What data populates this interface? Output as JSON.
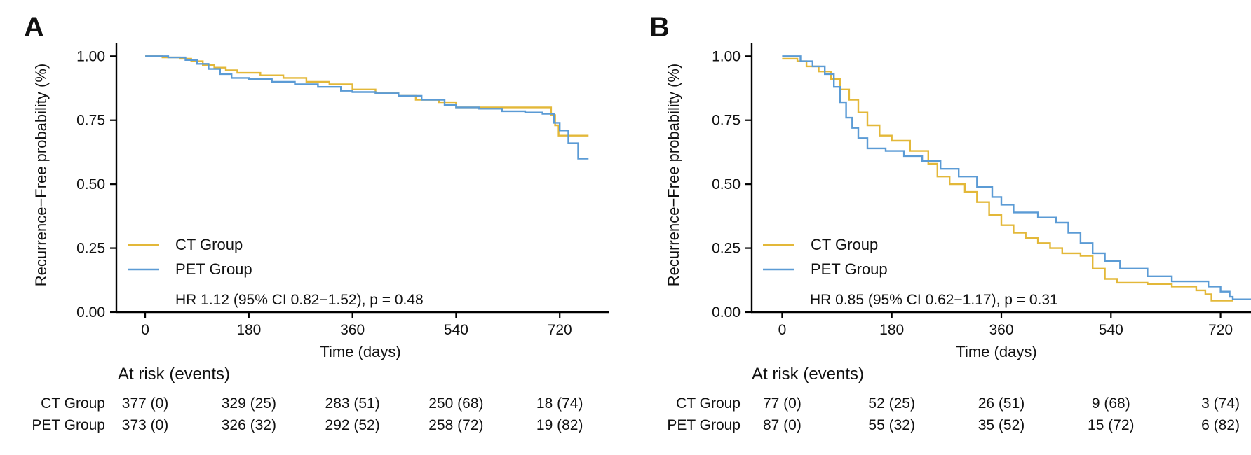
{
  "chart_data": [
    {
      "type": "line",
      "panel": "A",
      "xlabel": "Time (days)",
      "ylabel": "Recurrence−Free probability (%)",
      "xlim": [
        -50,
        805
      ],
      "ylim": [
        0,
        1.05
      ],
      "xticks": [
        0,
        180,
        360,
        540,
        720
      ],
      "yticks": [
        0,
        0.25,
        0.5,
        0.75,
        1.0
      ],
      "ytick_labels": [
        "0.00",
        "0.25",
        "0.50",
        "0.75",
        "1.00"
      ],
      "legend": {
        "placement": "bottom-left",
        "entries": [
          "CT Group",
          "PET Group"
        ]
      },
      "annotation": "HR 1.12 (95% CI 0.82−1.52), p = 0.48",
      "series": [
        {
          "name": "CT Group",
          "color": "#E3B839",
          "step_points": [
            [
              0,
              1.0
            ],
            [
              30,
              0.995
            ],
            [
              60,
              0.99
            ],
            [
              80,
              0.98
            ],
            [
              100,
              0.965
            ],
            [
              120,
              0.955
            ],
            [
              140,
              0.945
            ],
            [
              160,
              0.935
            ],
            [
              200,
              0.925
            ],
            [
              240,
              0.915
            ],
            [
              280,
              0.9
            ],
            [
              320,
              0.89
            ],
            [
              360,
              0.87
            ],
            [
              400,
              0.855
            ],
            [
              440,
              0.845
            ],
            [
              470,
              0.83
            ],
            [
              510,
              0.82
            ],
            [
              540,
              0.8
            ],
            [
              600,
              0.8
            ],
            [
              700,
              0.8
            ],
            [
              705,
              0.77
            ],
            [
              712,
              0.73
            ],
            [
              718,
              0.69
            ],
            [
              770,
              0.69
            ]
          ]
        },
        {
          "name": "PET Group",
          "color": "#5B9BD5",
          "step_points": [
            [
              0,
              1.0
            ],
            [
              40,
              0.995
            ],
            [
              70,
              0.985
            ],
            [
              90,
              0.97
            ],
            [
              110,
              0.95
            ],
            [
              130,
              0.93
            ],
            [
              150,
              0.915
            ],
            [
              180,
              0.91
            ],
            [
              220,
              0.9
            ],
            [
              260,
              0.89
            ],
            [
              300,
              0.88
            ],
            [
              340,
              0.865
            ],
            [
              360,
              0.86
            ],
            [
              400,
              0.855
            ],
            [
              440,
              0.845
            ],
            [
              480,
              0.83
            ],
            [
              520,
              0.81
            ],
            [
              540,
              0.8
            ],
            [
              580,
              0.795
            ],
            [
              620,
              0.785
            ],
            [
              660,
              0.78
            ],
            [
              690,
              0.775
            ],
            [
              710,
              0.74
            ],
            [
              720,
              0.71
            ],
            [
              735,
              0.66
            ],
            [
              752,
              0.6
            ],
            [
              770,
              0.6
            ]
          ]
        }
      ],
      "at_risk": {
        "title": "At risk (events)",
        "rows": [
          {
            "group": "CT Group",
            "values": [
              "377 (0)",
              "329 (25)",
              "283 (51)",
              "250 (68)",
              "18 (74)"
            ]
          },
          {
            "group": "PET Group",
            "values": [
              "373 (0)",
              "326 (32)",
              "292 (52)",
              "258 (72)",
              "19 (82)"
            ]
          }
        ]
      }
    },
    {
      "type": "line",
      "panel": "B",
      "xlabel": "Time (days)",
      "ylabel": "Recurrence−Free probability (%)",
      "xlim": [
        -50,
        770
      ],
      "ylim": [
        0,
        1.05
      ],
      "xticks": [
        0,
        180,
        360,
        540,
        720
      ],
      "yticks": [
        0,
        0.25,
        0.5,
        0.75,
        1.0
      ],
      "ytick_labels": [
        "0.00",
        "0.25",
        "0.50",
        "0.75",
        "1.00"
      ],
      "legend": {
        "placement": "bottom-left",
        "entries": [
          "CT Group",
          "PET Group"
        ]
      },
      "annotation": "HR 0.85 (95% CI 0.62−1.17), p = 0.31",
      "series": [
        {
          "name": "CT Group",
          "color": "#E3B839",
          "step_points": [
            [
              0,
              0.99
            ],
            [
              25,
              0.98
            ],
            [
              40,
              0.96
            ],
            [
              60,
              0.94
            ],
            [
              80,
              0.91
            ],
            [
              95,
              0.87
            ],
            [
              110,
              0.83
            ],
            [
              125,
              0.78
            ],
            [
              140,
              0.73
            ],
            [
              160,
              0.69
            ],
            [
              180,
              0.67
            ],
            [
              210,
              0.63
            ],
            [
              240,
              0.58
            ],
            [
              255,
              0.53
            ],
            [
              275,
              0.5
            ],
            [
              300,
              0.47
            ],
            [
              320,
              0.43
            ],
            [
              340,
              0.38
            ],
            [
              360,
              0.34
            ],
            [
              380,
              0.31
            ],
            [
              400,
              0.29
            ],
            [
              420,
              0.27
            ],
            [
              440,
              0.25
            ],
            [
              460,
              0.23
            ],
            [
              490,
              0.22
            ],
            [
              510,
              0.17
            ],
            [
              530,
              0.13
            ],
            [
              550,
              0.115
            ],
            [
              600,
              0.11
            ],
            [
              640,
              0.1
            ],
            [
              680,
              0.085
            ],
            [
              695,
              0.07
            ],
            [
              705,
              0.045
            ],
            [
              740,
              0.045
            ]
          ]
        },
        {
          "name": "PET Group",
          "color": "#5B9BD5",
          "step_points": [
            [
              0,
              1.0
            ],
            [
              30,
              0.98
            ],
            [
              50,
              0.96
            ],
            [
              70,
              0.93
            ],
            [
              85,
              0.88
            ],
            [
              95,
              0.82
            ],
            [
              105,
              0.76
            ],
            [
              115,
              0.72
            ],
            [
              125,
              0.68
            ],
            [
              140,
              0.64
            ],
            [
              170,
              0.63
            ],
            [
              200,
              0.61
            ],
            [
              230,
              0.59
            ],
            [
              260,
              0.56
            ],
            [
              290,
              0.53
            ],
            [
              320,
              0.49
            ],
            [
              345,
              0.45
            ],
            [
              360,
              0.42
            ],
            [
              380,
              0.39
            ],
            [
              420,
              0.37
            ],
            [
              450,
              0.35
            ],
            [
              470,
              0.31
            ],
            [
              490,
              0.27
            ],
            [
              510,
              0.23
            ],
            [
              530,
              0.2
            ],
            [
              555,
              0.17
            ],
            [
              600,
              0.14
            ],
            [
              640,
              0.12
            ],
            [
              700,
              0.1
            ],
            [
              720,
              0.08
            ],
            [
              735,
              0.06
            ],
            [
              740,
              0.05
            ],
            [
              770,
              0.05
            ]
          ]
        }
      ],
      "at_risk": {
        "title": "At risk (events)",
        "rows": [
          {
            "group": "CT Group",
            "values": [
              "77 (0)",
              "52 (25)",
              "26 (51)",
              "9 (68)",
              "3 (74)"
            ]
          },
          {
            "group": "PET Group",
            "values": [
              "87 (0)",
              "55 (32)",
              "35 (52)",
              "15 (72)",
              "6 (82)"
            ]
          }
        ]
      }
    }
  ]
}
